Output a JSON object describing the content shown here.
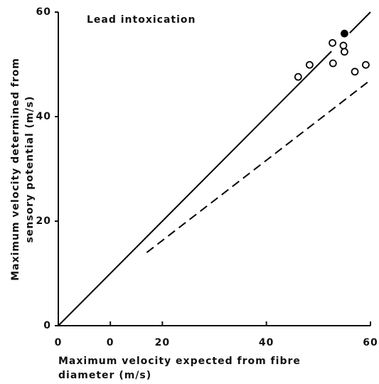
{
  "chart_data": {
    "type": "scatter",
    "title": "Lead intoxication",
    "xlabel": [
      "Maximum     velocity expected from fibre",
      "diameter  (m/s)"
    ],
    "ylabel": [
      "Maximum velocity determined from",
      "sensory potential  (m/s)"
    ],
    "xlim": [
      0,
      60
    ],
    "ylim": [
      0,
      60
    ],
    "xticks": [
      0,
      {
        "value": 10,
        "label": "0"
      },
      20,
      40,
      60
    ],
    "yticks": [
      0,
      20,
      40,
      60
    ],
    "series": [
      {
        "type": "scatter",
        "marker": "open",
        "color": "#000000",
        "x": [
          46.1,
          48.3,
          52.7,
          52.8,
          54.8,
          55.0,
          57.0,
          59.1
        ],
        "values": [
          47.6,
          49.9,
          54.1,
          50.2,
          53.6,
          52.4,
          48.6,
          49.9
        ]
      },
      {
        "type": "scatter",
        "marker": "filled",
        "color": "#000000",
        "x": [
          55.0
        ],
        "values": [
          55.9
        ]
      },
      {
        "type": "line",
        "dash": "solid",
        "color": "#000000",
        "x": [
          0,
          52.5,
          54,
          56,
          60
        ],
        "values": [
          0,
          52.5,
          null,
          56,
          60
        ]
      },
      {
        "type": "line",
        "dash": "dashed",
        "color": "#000000",
        "x": [
          17,
          60
        ],
        "values": [
          14,
          47
        ]
      }
    ]
  }
}
